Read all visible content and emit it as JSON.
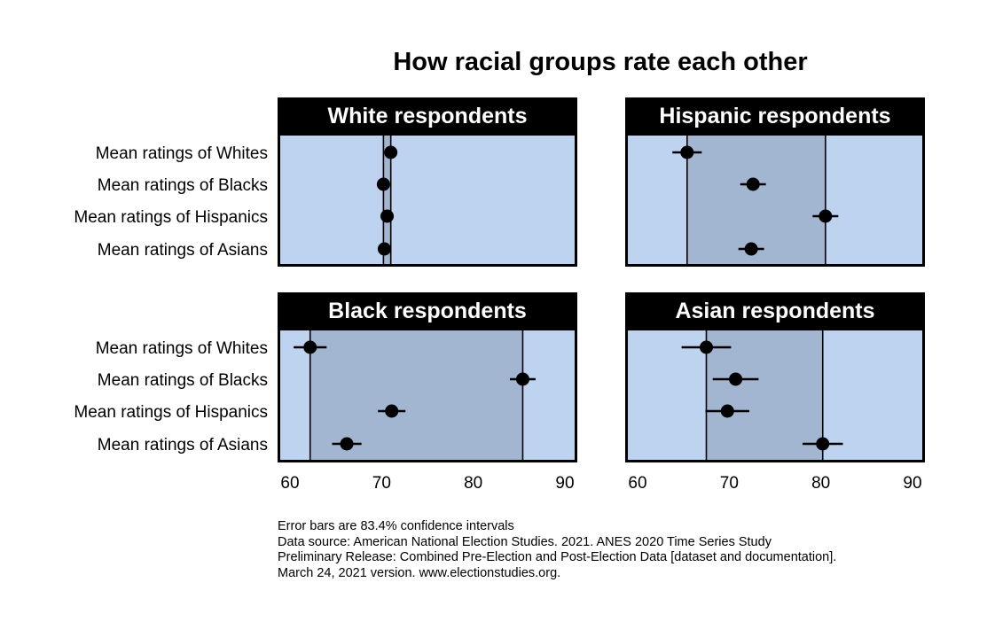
{
  "chart_data": {
    "type": "scatter",
    "subtype": "dot-plot with error bars, faceted 2x2",
    "title": "How racial groups rate each other",
    "xlim": [
      60,
      90
    ],
    "xticks": [
      60,
      70,
      80,
      90
    ],
    "categories": [
      "Mean ratings of Whites",
      "Mean ratings of Blacks",
      "Mean ratings of Hispanics",
      "Mean ratings of Asians"
    ],
    "grid": false,
    "colors": {
      "panel_background": "#bed3f0",
      "shaded_range": "#a2b6d2",
      "panel_header": "#000000",
      "points": "#000000"
    },
    "panels": [
      {
        "title": "White respondents",
        "points": [
          {
            "category": "Mean ratings of Whites",
            "mean": 71.0,
            "lo": 70.4,
            "hi": 71.6
          },
          {
            "category": "Mean ratings of Blacks",
            "mean": 70.2,
            "lo": 69.6,
            "hi": 70.8
          },
          {
            "category": "Mean ratings of Hispanics",
            "mean": 70.6,
            "lo": 70.0,
            "hi": 71.2
          },
          {
            "category": "Mean ratings of Asians",
            "mean": 70.3,
            "lo": 69.7,
            "hi": 70.9
          }
        ]
      },
      {
        "title": "Hispanic respondents",
        "points": [
          {
            "category": "Mean ratings of Whites",
            "mean": 65.4,
            "lo": 63.8,
            "hi": 67.0
          },
          {
            "category": "Mean ratings of Blacks",
            "mean": 72.6,
            "lo": 71.2,
            "hi": 74.0
          },
          {
            "category": "Mean ratings of Hispanics",
            "mean": 80.5,
            "lo": 79.1,
            "hi": 81.9
          },
          {
            "category": "Mean ratings of Asians",
            "mean": 72.4,
            "lo": 71.0,
            "hi": 73.8
          }
        ]
      },
      {
        "title": "Black respondents",
        "points": [
          {
            "category": "Mean ratings of Whites",
            "mean": 62.2,
            "lo": 60.4,
            "hi": 64.0
          },
          {
            "category": "Mean ratings of Blacks",
            "mean": 85.4,
            "lo": 84.0,
            "hi": 86.8
          },
          {
            "category": "Mean ratings of Hispanics",
            "mean": 71.1,
            "lo": 69.6,
            "hi": 72.6
          },
          {
            "category": "Mean ratings of Asians",
            "mean": 66.2,
            "lo": 64.6,
            "hi": 67.8
          }
        ]
      },
      {
        "title": "Asian respondents",
        "points": [
          {
            "category": "Mean ratings of Whites",
            "mean": 67.5,
            "lo": 64.8,
            "hi": 70.2
          },
          {
            "category": "Mean ratings of Blacks",
            "mean": 70.7,
            "lo": 68.2,
            "hi": 73.2
          },
          {
            "category": "Mean ratings of Hispanics",
            "mean": 69.8,
            "lo": 67.4,
            "hi": 72.2
          },
          {
            "category": "Mean ratings of Asians",
            "mean": 80.2,
            "lo": 78.0,
            "hi": 82.4
          }
        ]
      }
    ]
  },
  "notes": [
    "Error bars are 83.4% confidence intervals",
    "Data source: American National Election Studies. 2021. ANES 2020 Time Series Study",
    "Preliminary Release: Combined Pre-Election and Post-Election Data [dataset and documentation].",
    "March 24, 2021 version. www.electionstudies.org."
  ]
}
